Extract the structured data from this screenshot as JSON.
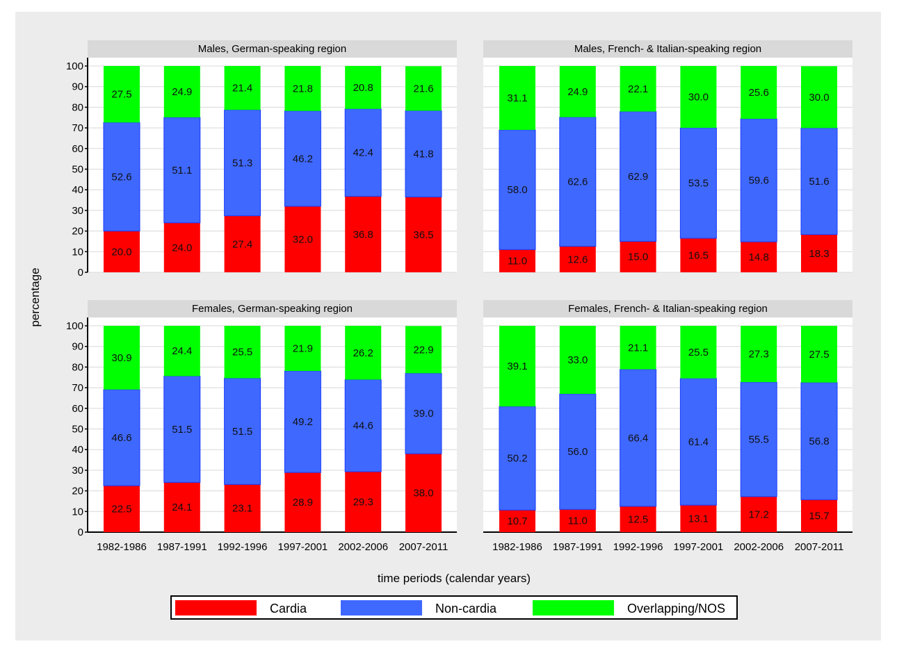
{
  "chart_data": {
    "type": "bar",
    "stacked": true,
    "ylabel": "percentage",
    "xlabel": "time periods (calendar years)",
    "ylim": [
      0,
      100
    ],
    "yticks": [
      0,
      10,
      20,
      30,
      40,
      50,
      60,
      70,
      80,
      90,
      100
    ],
    "grid": true,
    "legend_placement": "bottom",
    "categories": [
      "1982-1986",
      "1987-1991",
      "1992-1996",
      "1997-2001",
      "2002-2006",
      "2007-2011"
    ],
    "series_names": [
      "Cardia",
      "Non-cardia",
      "Overlapping/NOS"
    ],
    "colors": {
      "Cardia": "#ff0000",
      "Non-cardia": "#3f68ff",
      "Overlapping/NOS": "#00ff00",
      "panel_bg": "#ececec",
      "header_bg": "#d9d9d9",
      "bar_edge": "#1a3cff"
    },
    "panels": [
      {
        "title": "Males, German-speaking region",
        "series": [
          {
            "name": "Cardia",
            "values": [
              20.0,
              24.0,
              27.4,
              32.0,
              36.8,
              36.5
            ]
          },
          {
            "name": "Non-cardia",
            "values": [
              52.6,
              51.1,
              51.3,
              46.2,
              42.4,
              41.8
            ]
          },
          {
            "name": "Overlapping/NOS",
            "values": [
              27.5,
              24.9,
              21.4,
              21.8,
              20.8,
              21.6
            ]
          }
        ]
      },
      {
        "title": "Males, French- & Italian-speaking region",
        "series": [
          {
            "name": "Cardia",
            "values": [
              11.0,
              12.6,
              15.0,
              16.5,
              14.8,
              18.3
            ]
          },
          {
            "name": "Non-cardia",
            "values": [
              58.0,
              62.6,
              62.9,
              53.5,
              59.6,
              51.6
            ]
          },
          {
            "name": "Overlapping/NOS",
            "values": [
              31.1,
              24.9,
              22.1,
              30.0,
              25.6,
              30.0
            ]
          }
        ]
      },
      {
        "title": "Females, German-speaking region",
        "series": [
          {
            "name": "Cardia",
            "values": [
              22.5,
              24.1,
              23.1,
              28.9,
              29.3,
              38.0
            ]
          },
          {
            "name": "Non-cardia",
            "values": [
              46.6,
              51.5,
              51.5,
              49.2,
              44.6,
              39.0
            ]
          },
          {
            "name": "Overlapping/NOS",
            "values": [
              30.9,
              24.4,
              25.5,
              21.9,
              26.2,
              22.9
            ]
          }
        ]
      },
      {
        "title": "Females, French- & Italian-speaking region",
        "series": [
          {
            "name": "Cardia",
            "values": [
              10.7,
              11.0,
              12.5,
              13.1,
              17.2,
              15.7
            ]
          },
          {
            "name": "Non-cardia",
            "values": [
              50.2,
              56.0,
              66.4,
              61.4,
              55.5,
              56.8
            ]
          },
          {
            "name": "Overlapping/NOS",
            "values": [
              39.1,
              33.0,
              21.1,
              25.5,
              27.3,
              27.5
            ]
          }
        ]
      }
    ]
  }
}
